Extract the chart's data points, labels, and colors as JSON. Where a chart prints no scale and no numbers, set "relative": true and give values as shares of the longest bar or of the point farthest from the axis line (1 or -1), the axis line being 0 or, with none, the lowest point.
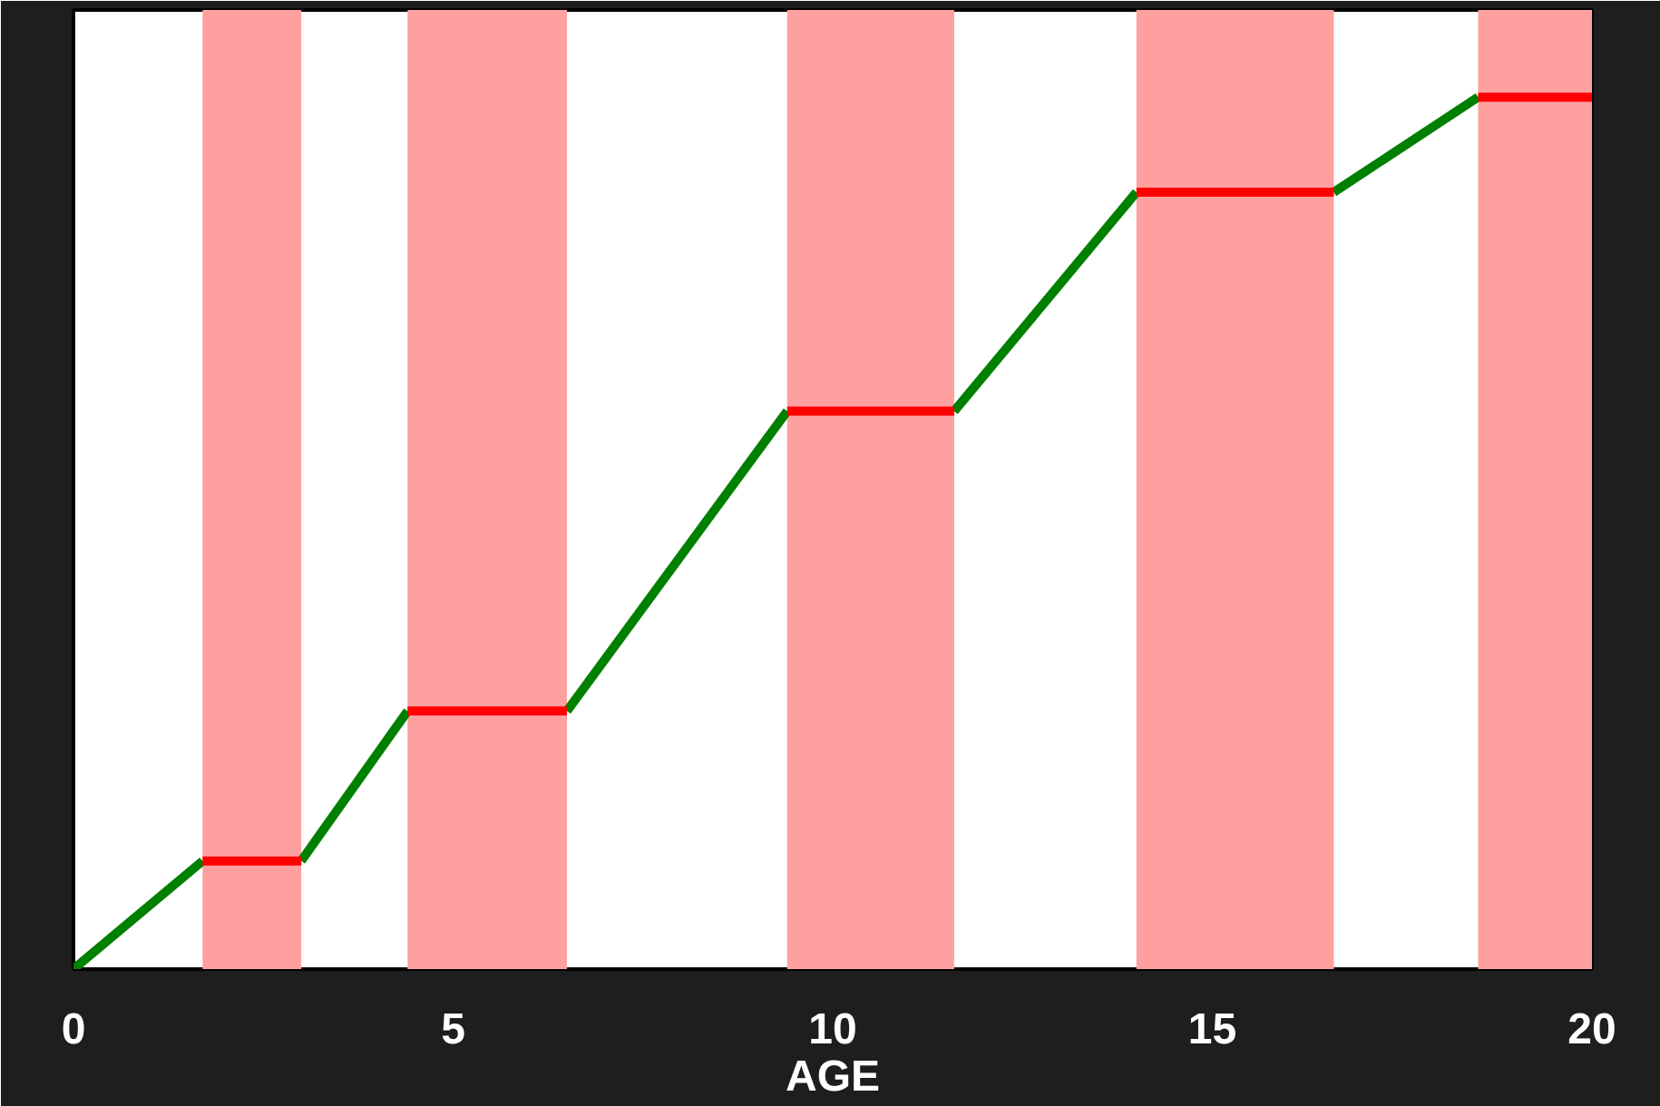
{
  "chart_data": {
    "type": "line",
    "xlabel": "AGE",
    "relative": true,
    "xlim": [
      0,
      20
    ],
    "xticks": [
      0,
      5,
      10,
      15,
      20
    ],
    "line_style": "solid",
    "marker": "none",
    "grid": false,
    "series": [
      {
        "color": "#008000",
        "x": [
          0,
          1.7,
          2.4,
          3.0,
          4.4,
          5.5,
          6.5,
          9.4,
          10.5,
          11.6,
          14.0,
          15.3,
          16.6,
          18.5
        ],
        "values": [
          0,
          0.124,
          null,
          0.124,
          0.296,
          null,
          0.296,
          0.64,
          null,
          0.64,
          0.891,
          null,
          0.891,
          1
        ]
      },
      {
        "color": "#ff0000",
        "x": [
          1.7,
          3.0,
          3.7,
          4.4,
          6.5,
          8.0,
          9.4,
          11.6,
          12.8,
          14.0,
          16.6,
          17.5,
          18.5,
          20
        ],
        "values": [
          0.124,
          0.124,
          null,
          0.296,
          0.296,
          null,
          0.64,
          0.64,
          null,
          0.891,
          0.891,
          null,
          1,
          1
        ]
      }
    ],
    "bands": [
      {
        "axis": "x",
        "from": 1.7,
        "to": 3.0,
        "color": "#ffa0a0"
      },
      {
        "axis": "x",
        "from": 4.4,
        "to": 6.5,
        "color": "#ffa0a0"
      },
      {
        "axis": "x",
        "from": 9.4,
        "to": 11.6,
        "color": "#ffa0a0"
      },
      {
        "axis": "x",
        "from": 14.0,
        "to": 16.6,
        "color": "#ffa0a0"
      },
      {
        "axis": "x",
        "from": 18.5,
        "to": 20,
        "color": "#ffa0a0"
      }
    ]
  }
}
